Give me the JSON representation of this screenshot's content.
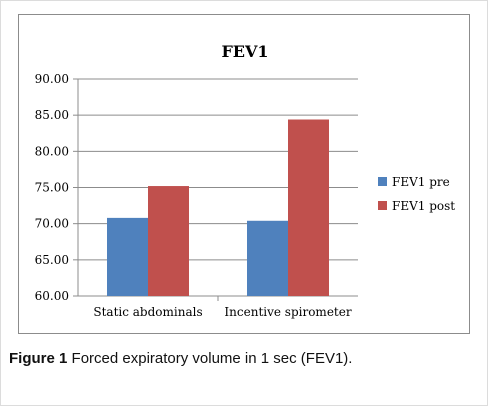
{
  "caption": {
    "figure_number": "Figure 1",
    "text": "Forced expiratory volume in 1 sec (FEV1)."
  },
  "colors": {
    "pre": "#4f81bd",
    "post": "#c0504d",
    "grid": "#8c8c8c"
  },
  "chart_data": {
    "type": "bar",
    "title": "FEV1",
    "xlabel": "",
    "ylabel": "",
    "categories": [
      "Static abdominals",
      "Incentive spirometer"
    ],
    "series": [
      {
        "name": "FEV1 pre",
        "values": [
          70.8,
          70.4
        ]
      },
      {
        "name": "FEV1 post",
        "values": [
          75.2,
          84.4
        ]
      }
    ],
    "ylim": [
      60,
      90
    ],
    "yticks": [
      "60.00",
      "65.00",
      "70.00",
      "75.00",
      "80.00",
      "85.00",
      "90.00"
    ],
    "grid": true,
    "legend": "right"
  }
}
